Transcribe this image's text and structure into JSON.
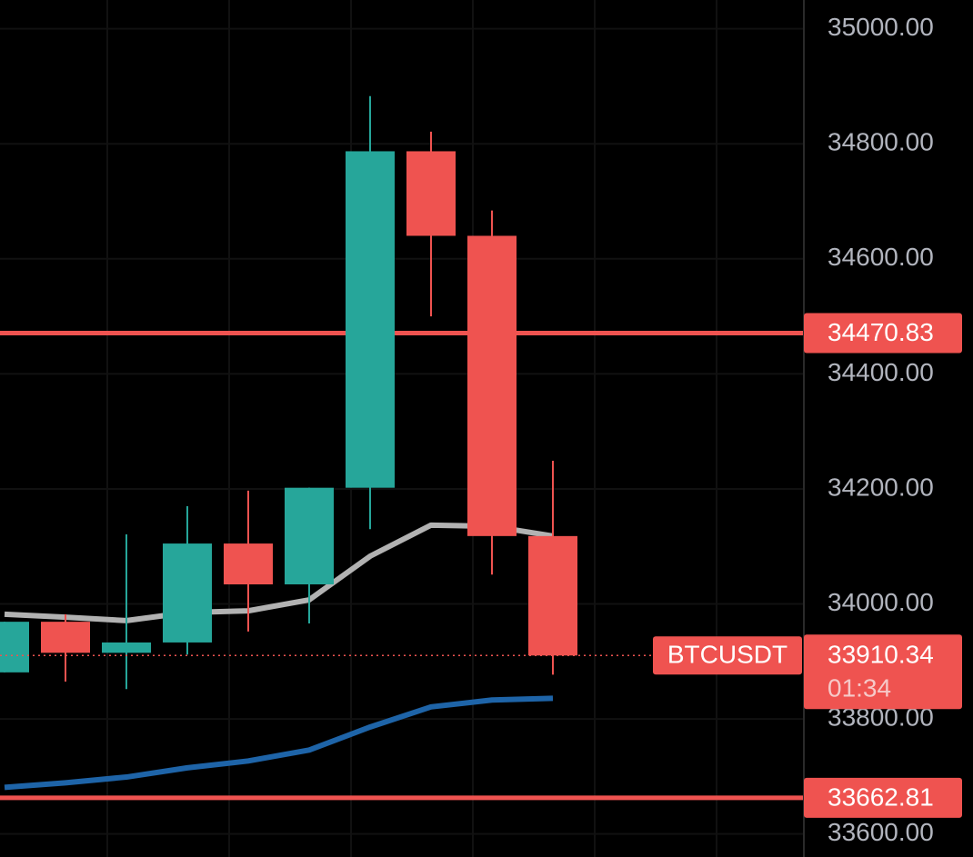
{
  "chart_data": {
    "type": "candlestick",
    "symbol": "BTCUSDT",
    "countdown": "01:34",
    "categories": [
      null,
      null,
      null,
      null,
      null,
      null,
      null,
      null,
      null,
      null
    ],
    "open": [
      33881,
      33969,
      33915,
      33933,
      34105,
      34034,
      34202,
      34787,
      34640,
      34118
    ],
    "high": [
      33969,
      33982,
      34121,
      34170,
      34197,
      34202,
      34883,
      34821,
      34684,
      34249
    ],
    "low": [
      33881,
      33865,
      33852,
      33912,
      33952,
      33966,
      34130,
      34500,
      34051,
      33877
    ],
    "close": [
      33969,
      33915,
      33933,
      34105,
      34034,
      34202,
      34787,
      34640,
      34118,
      33910.34
    ],
    "up_color": "#26a69a",
    "down_color": "#ef5350",
    "series": [
      {
        "color": "#b2b2b2",
        "values": [
          33982,
          33977,
          33971,
          33985,
          33988,
          34007,
          34083,
          34137,
          34135,
          34118
        ]
      },
      {
        "color": "#1e64a8",
        "values": [
          33681,
          33689,
          33699,
          33715,
          33727,
          33746,
          33786,
          33821,
          33833,
          33836
        ]
      }
    ],
    "price_lines": [
      {
        "value": 34470.83,
        "color": "#ef5350"
      },
      {
        "value": 33662.81,
        "color": "#ef5350"
      }
    ],
    "ylim": [
      33560,
      35050
    ],
    "yticks": [
      {
        "value": 35000,
        "label": "35000.00"
      },
      {
        "value": 34800,
        "label": "34800.00"
      },
      {
        "value": 34600,
        "label": "34600.00"
      },
      {
        "value": 34400,
        "label": "34400.00"
      },
      {
        "value": 34200,
        "label": "34200.00"
      },
      {
        "value": 34000,
        "label": "34000.00"
      },
      {
        "value": 33800,
        "label": "33800.00"
      },
      {
        "value": 33600,
        "label": "33600.00"
      }
    ],
    "grid": true
  }
}
